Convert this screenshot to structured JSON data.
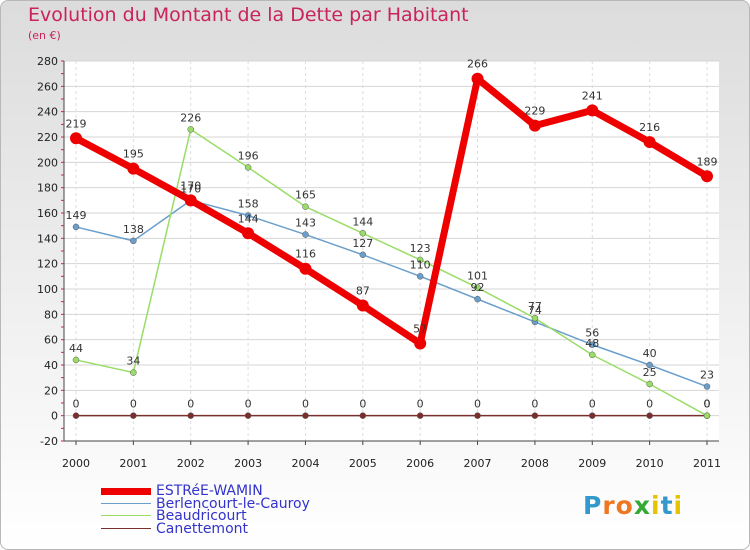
{
  "title": "Evolution du Montant de la Dette par Habitant",
  "subtitle": "(en €)",
  "chart_data": {
    "type": "line",
    "title": "Evolution du Montant de la Dette par Habitant",
    "subtitle": "(en €)",
    "xlabel": "",
    "ylabel": "",
    "x": [
      "2000",
      "2001",
      "2002",
      "2003",
      "2004",
      "2005",
      "2006",
      "2007",
      "2008",
      "2009",
      "2010",
      "2011"
    ],
    "ylim": [
      -20,
      280
    ],
    "yticks": [
      -20,
      0,
      20,
      40,
      60,
      80,
      100,
      120,
      140,
      160,
      180,
      200,
      220,
      240,
      260,
      280
    ],
    "grid": "horizontal",
    "legend_position": "bottom-left",
    "series": [
      {
        "name": "ESTRéE-WAMIN",
        "color": "#ee0000",
        "values": [
          219,
          195,
          170,
          144,
          116,
          87,
          57,
          266,
          229,
          241,
          216,
          189
        ]
      },
      {
        "name": "Berlencourt-le-Cauroy",
        "color": "#6a9fcc",
        "values": [
          149,
          138,
          170,
          158,
          143,
          127,
          110,
          92,
          74,
          56,
          40,
          23
        ]
      },
      {
        "name": "Beaudricourt",
        "color": "#99dd66",
        "values": [
          44,
          34,
          226,
          196,
          165,
          144,
          123,
          101,
          77,
          48,
          25,
          0
        ]
      },
      {
        "name": "Canettemont",
        "color": "#7a2e2e",
        "values": [
          0,
          0,
          0,
          0,
          0,
          0,
          0,
          0,
          0,
          0,
          0,
          0
        ]
      }
    ]
  },
  "logo": {
    "text": "Proxiti",
    "colors": [
      "#3399cc",
      "#ee7722",
      "#ee7722",
      "#33aa33",
      "#e6c200",
      "#3399cc",
      "#e6c200"
    ]
  }
}
